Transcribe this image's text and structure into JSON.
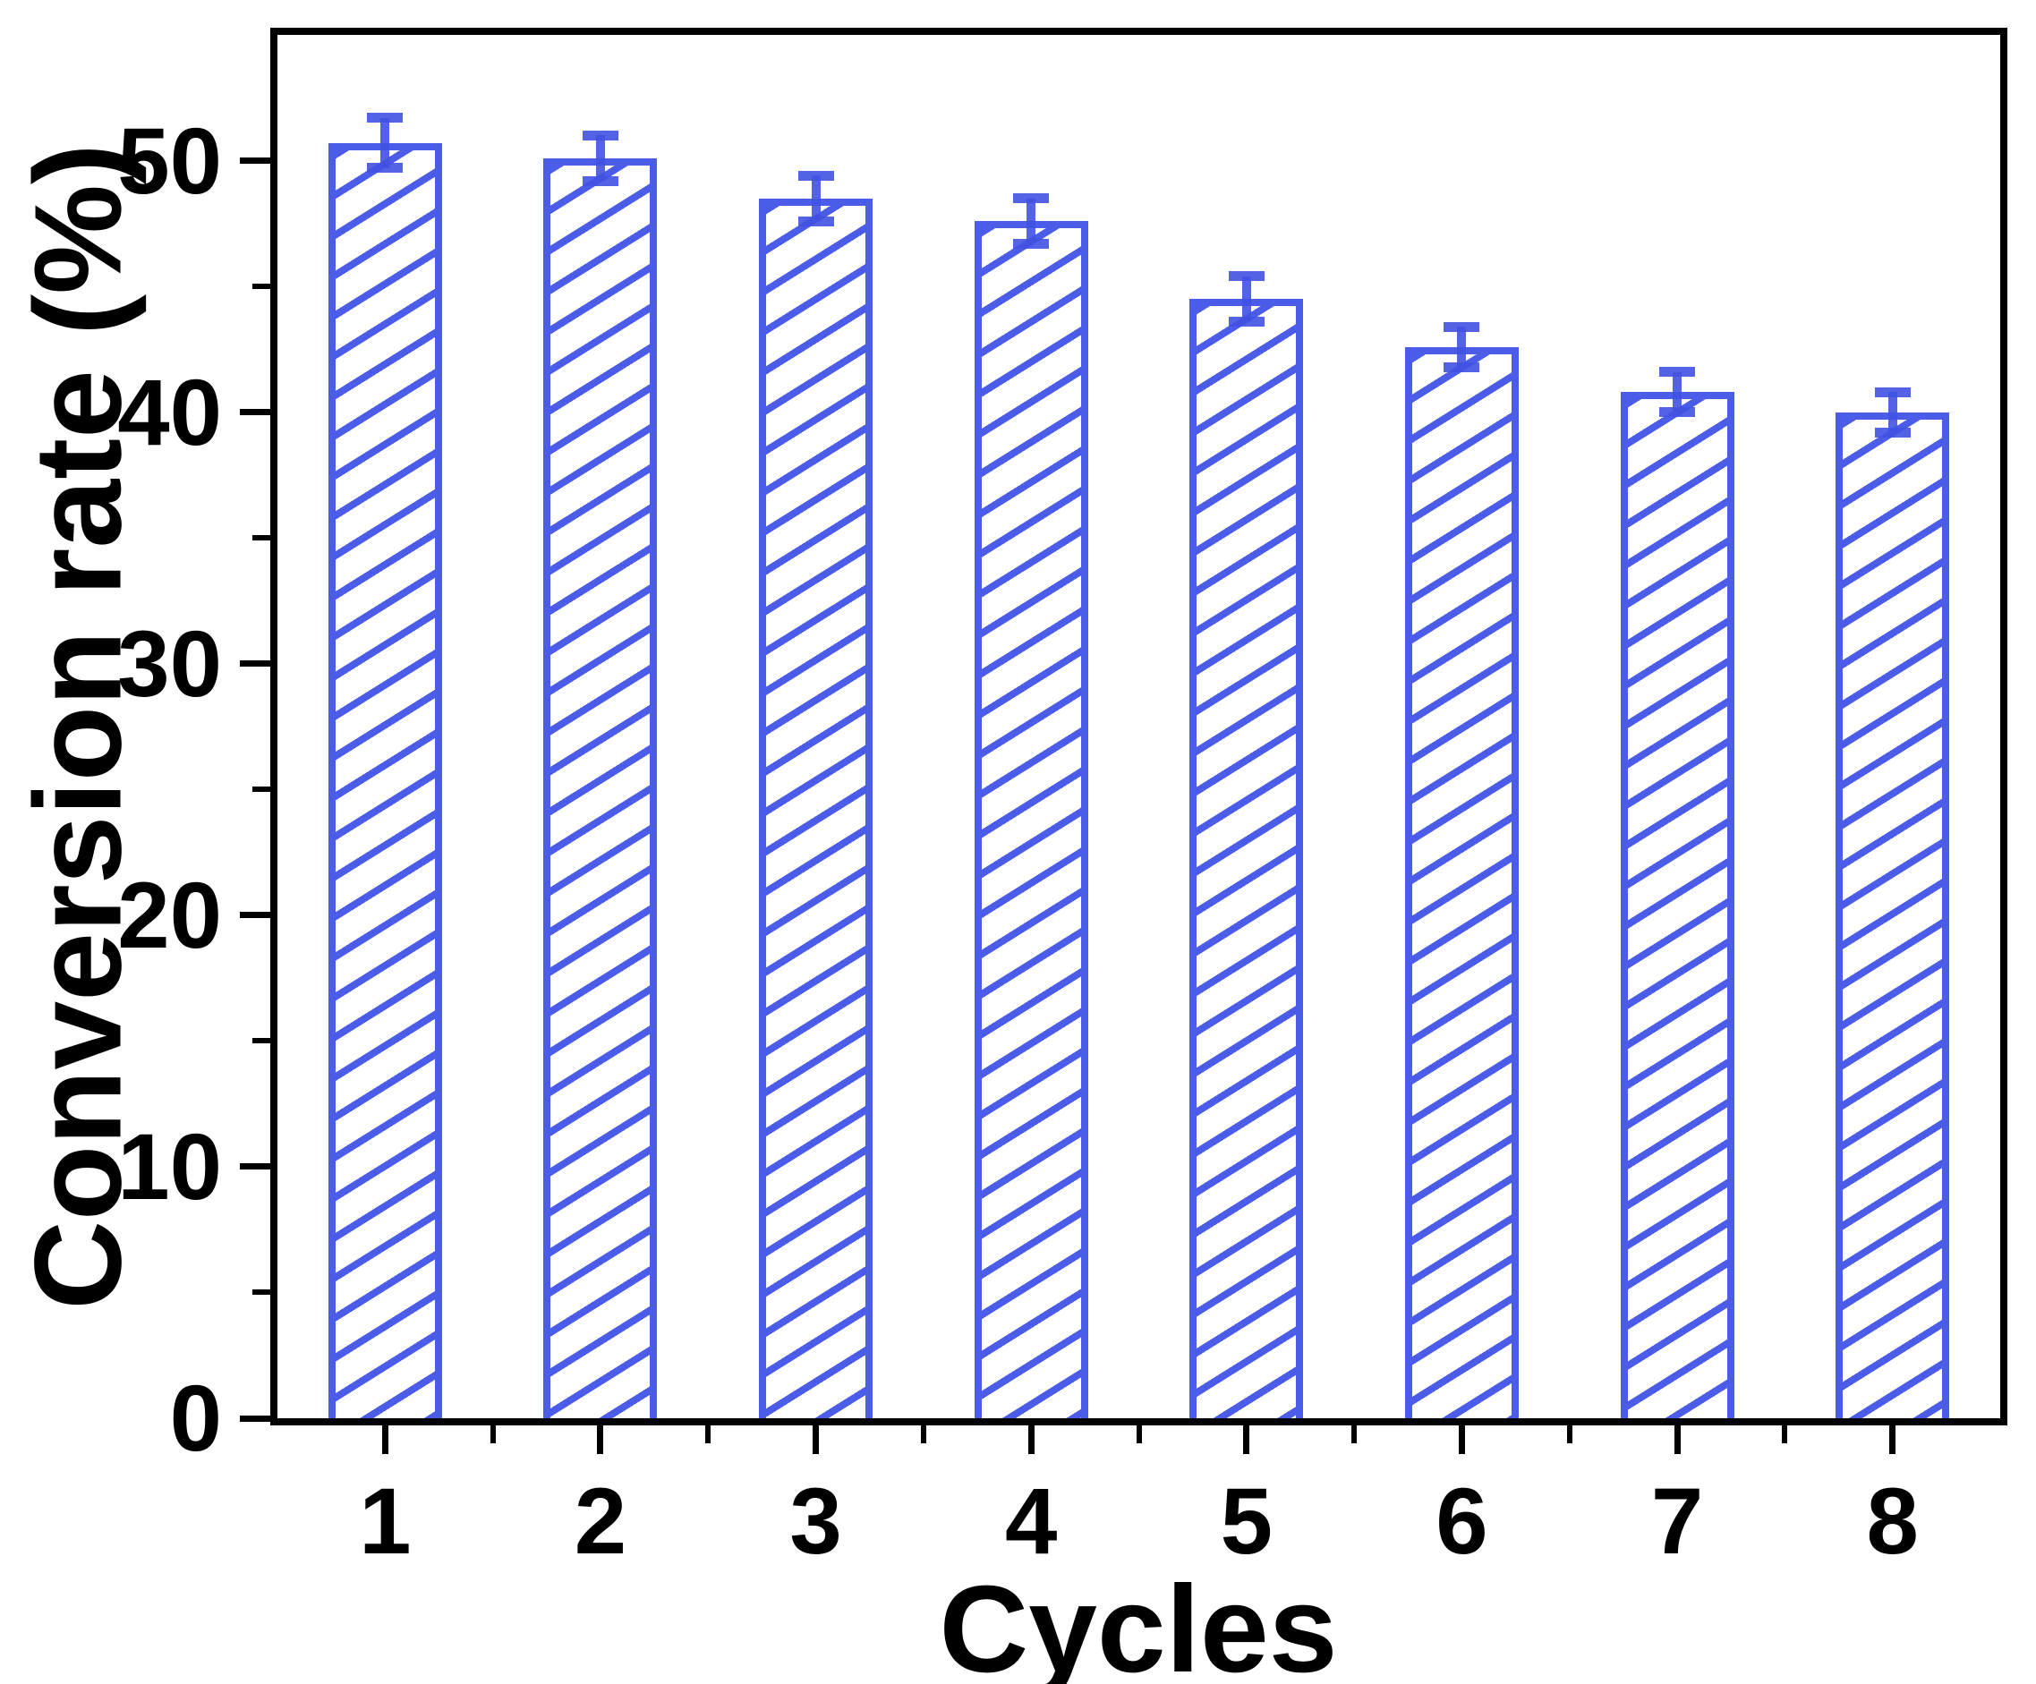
{
  "chart_data": {
    "type": "bar",
    "title": "",
    "xlabel": "Cycles",
    "ylabel": "Conversion rate (%)",
    "categories": [
      "1",
      "2",
      "3",
      "4",
      "5",
      "6",
      "7",
      "8"
    ],
    "values": [
      50.7,
      50.1,
      48.5,
      47.6,
      44.5,
      42.6,
      40.8,
      40.0
    ],
    "error_bars": [
      1.0,
      0.9,
      0.9,
      0.9,
      0.9,
      0.8,
      0.8,
      0.8
    ],
    "ylim": [
      0,
      55
    ],
    "yticks": [
      0,
      10,
      20,
      30,
      40,
      50
    ],
    "yticks_minor": [
      5,
      15,
      25,
      35,
      45
    ],
    "grid": "off",
    "legend": "none",
    "bar_hatch": "forward-diagonal",
    "colors": {
      "bar_outline": "#4a5ce8",
      "bar_hatch_line": "#4a5ce8",
      "bar_fill": "#ffffff",
      "error_bar": "#4152e2",
      "axis": "#000000",
      "text": "#000000",
      "background": "#ffffff"
    }
  }
}
